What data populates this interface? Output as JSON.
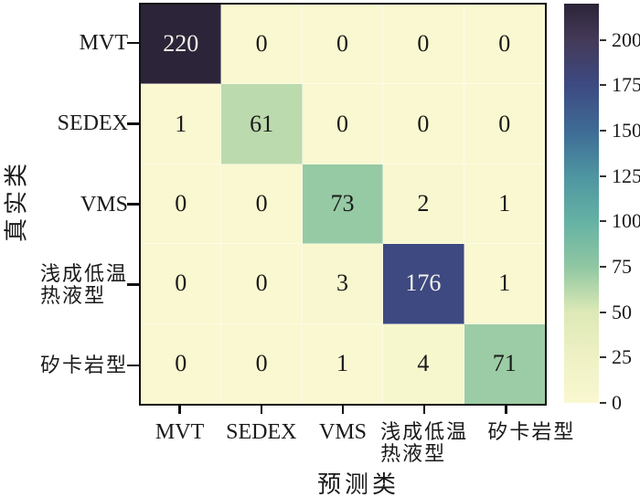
{
  "figure": {
    "background": "#ffffff",
    "text_color": "#1a1a1a"
  },
  "chart_data": {
    "type": "heatmap",
    "subtype": "confusion-matrix",
    "xlabel": "预测类",
    "ylabel": "真实类",
    "x_categories": [
      "MVT",
      "SEDEX",
      "VMS",
      "浅成低温\n热液型",
      "矽卡岩型"
    ],
    "y_categories": [
      "MVT",
      "SEDEX",
      "VMS",
      "浅成低温\n热液型",
      "矽卡岩型"
    ],
    "matrix": [
      [
        220,
        0,
        0,
        0,
        0
      ],
      [
        1,
        61,
        0,
        0,
        0
      ],
      [
        0,
        0,
        73,
        2,
        1
      ],
      [
        0,
        0,
        3,
        176,
        1
      ],
      [
        0,
        0,
        1,
        4,
        71
      ]
    ],
    "value_range": [
      0,
      220
    ],
    "grid": true,
    "colorbar": {
      "position": "right",
      "tick_labels": [
        "200",
        "175",
        "150",
        "125",
        "100",
        "75",
        "50",
        "25",
        "0"
      ],
      "tick_values": [
        200,
        175,
        150,
        125,
        100,
        75,
        50,
        25,
        0
      ],
      "gradient_stops": [
        {
          "value": 0,
          "color": "#f9f8d0"
        },
        {
          "value": 25,
          "color": "#eff1c5"
        },
        {
          "value": 50,
          "color": "#dde9b6"
        },
        {
          "value": 75,
          "color": "#90c7a2"
        },
        {
          "value": 100,
          "color": "#65b2a4"
        },
        {
          "value": 125,
          "color": "#4e95a1"
        },
        {
          "value": 150,
          "color": "#3e6b95"
        },
        {
          "value": 175,
          "color": "#3d4a82"
        },
        {
          "value": 200,
          "color": "#443a58"
        },
        {
          "value": 220,
          "color": "#2c2438"
        }
      ]
    },
    "cell_text_dark": "#1a1a1a",
    "cell_text_light": "#f5f2ec",
    "light_text_threshold": 150
  }
}
